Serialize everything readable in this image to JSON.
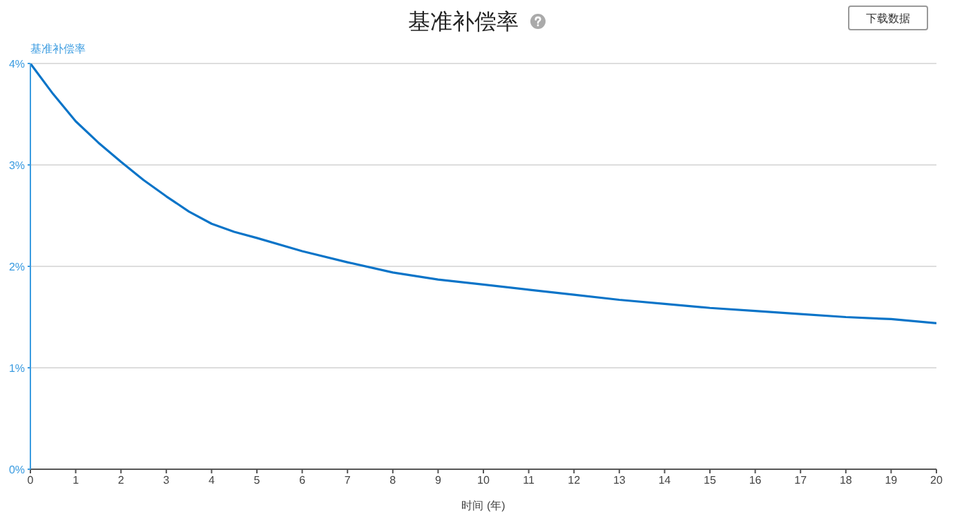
{
  "chart_data": {
    "type": "line",
    "title": "基准补偿率",
    "xlabel": "时间 (年)",
    "ylabel": "基准补偿率",
    "annotations": [
      "下载数据"
    ],
    "x": [
      0,
      0.5,
      1,
      1.5,
      2,
      2.5,
      3,
      3.5,
      4,
      4.5,
      5,
      6,
      7,
      8,
      9,
      10,
      11,
      12,
      13,
      14,
      15,
      16,
      17,
      18,
      19,
      20
    ],
    "series": [
      {
        "color": "#0a74c8",
        "values": [
          4.0,
          3.7,
          3.43,
          3.22,
          3.03,
          2.85,
          2.69,
          2.54,
          2.42,
          2.34,
          2.28,
          2.15,
          2.04,
          1.94,
          1.87,
          1.82,
          1.77,
          1.72,
          1.67,
          1.63,
          1.59,
          1.56,
          1.53,
          1.5,
          1.48,
          1.44
        ]
      }
    ],
    "xlim": [
      0,
      20
    ],
    "xticks": [
      0,
      1,
      2,
      3,
      4,
      5,
      6,
      7,
      8,
      9,
      10,
      11,
      12,
      13,
      14,
      15,
      16,
      17,
      18,
      19,
      20
    ],
    "ylim": [
      0,
      4
    ],
    "yticks": [
      {
        "value": 0,
        "label": "0%"
      },
      {
        "value": 1,
        "label": "1%"
      },
      {
        "value": 2,
        "label": "2%"
      },
      {
        "value": 3,
        "label": "3%"
      },
      {
        "value": 4,
        "label": "4%"
      }
    ],
    "grid": "y",
    "marker": "none",
    "line_style": "solid"
  }
}
